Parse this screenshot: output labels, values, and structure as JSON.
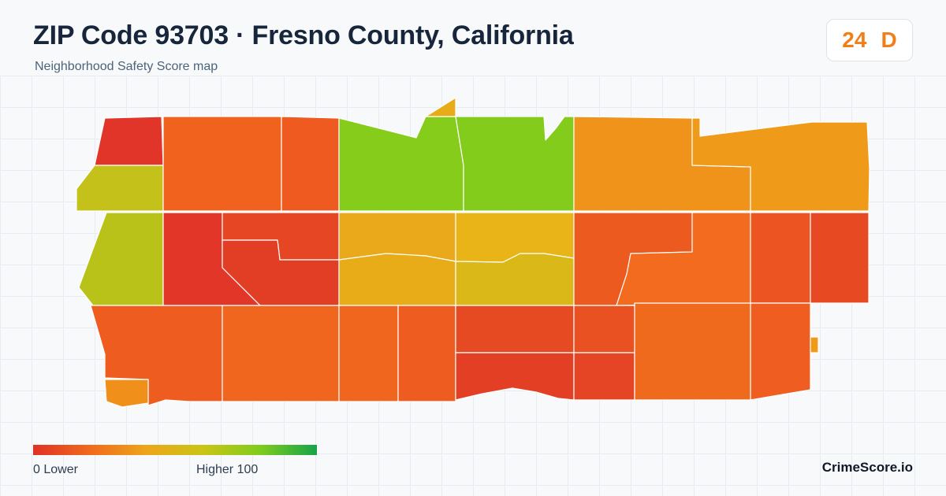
{
  "header": {
    "title": "ZIP Code 93703 · Fresno County, California",
    "subtitle": "Neighborhood Safety Score map"
  },
  "score_badge": {
    "score": "24",
    "grade": "D",
    "color": "#f07f1a"
  },
  "legend": {
    "min_label": "0  Lower",
    "max_label": "Higher  100",
    "color_stops": [
      "#e03127",
      "#f06a1c",
      "#eda51a",
      "#c9c516",
      "#7fcc1c",
      "#16a34a"
    ]
  },
  "brand": "CrimeScore.io",
  "map": {
    "border_color": "#ffffff",
    "regions": [
      {
        "id": "nw-corner",
        "color": "#e2352a"
      },
      {
        "id": "w-upper",
        "color": "#c4c11a"
      },
      {
        "id": "w-middle",
        "color": "#b8c219"
      },
      {
        "id": "row1-col2",
        "color": "#f0621e"
      },
      {
        "id": "row1-col3",
        "color": "#ee5a1f"
      },
      {
        "id": "row1-col4",
        "color": "#86cc1a"
      },
      {
        "id": "row1-col5",
        "color": "#84cc1b"
      },
      {
        "id": "row1-col6",
        "color": "#ef931a"
      },
      {
        "id": "row1-col7",
        "color": "#ef9a18"
      },
      {
        "id": "row2-col2",
        "color": "#e13628"
      },
      {
        "id": "row2-col3a",
        "color": "#e64623"
      },
      {
        "id": "row2-col3b",
        "color": "#e23d25"
      },
      {
        "id": "row2-col4a",
        "color": "#eaa91a"
      },
      {
        "id": "row2-col4b",
        "color": "#e9ac19"
      },
      {
        "id": "row2-col5a",
        "color": "#e8b418"
      },
      {
        "id": "row2-col5b",
        "color": "#d9b817"
      },
      {
        "id": "row2-col6",
        "color": "#ed5a20"
      },
      {
        "id": "row2-col7",
        "color": "#f26b1e"
      },
      {
        "id": "row2-col8",
        "color": "#ec5522"
      },
      {
        "id": "row2-col9",
        "color": "#e74a23"
      },
      {
        "id": "row2-col10",
        "color": "#e64324"
      },
      {
        "id": "row3-col1",
        "color": "#ee5c20"
      },
      {
        "id": "sw-notch",
        "color": "#f08f1a"
      },
      {
        "id": "row3-col2",
        "color": "#f0661e"
      },
      {
        "id": "row3-col3",
        "color": "#f0661e"
      },
      {
        "id": "row3-col4",
        "color": "#ee5c20"
      },
      {
        "id": "row3-col5a",
        "color": "#e54a23"
      },
      {
        "id": "row3-col5b",
        "color": "#e23f25"
      },
      {
        "id": "row3-col6a",
        "color": "#ea5122"
      },
      {
        "id": "row3-col6b",
        "color": "#e54425"
      },
      {
        "id": "row3-col7",
        "color": "#f0621e"
      },
      {
        "id": "row3-col8",
        "color": "#ef5e20"
      },
      {
        "id": "row3-col9",
        "color": "#f06a1e"
      },
      {
        "id": "east-tick",
        "color": "#ef9a18"
      },
      {
        "id": "north-tip",
        "color": "#e8ac19"
      }
    ]
  }
}
